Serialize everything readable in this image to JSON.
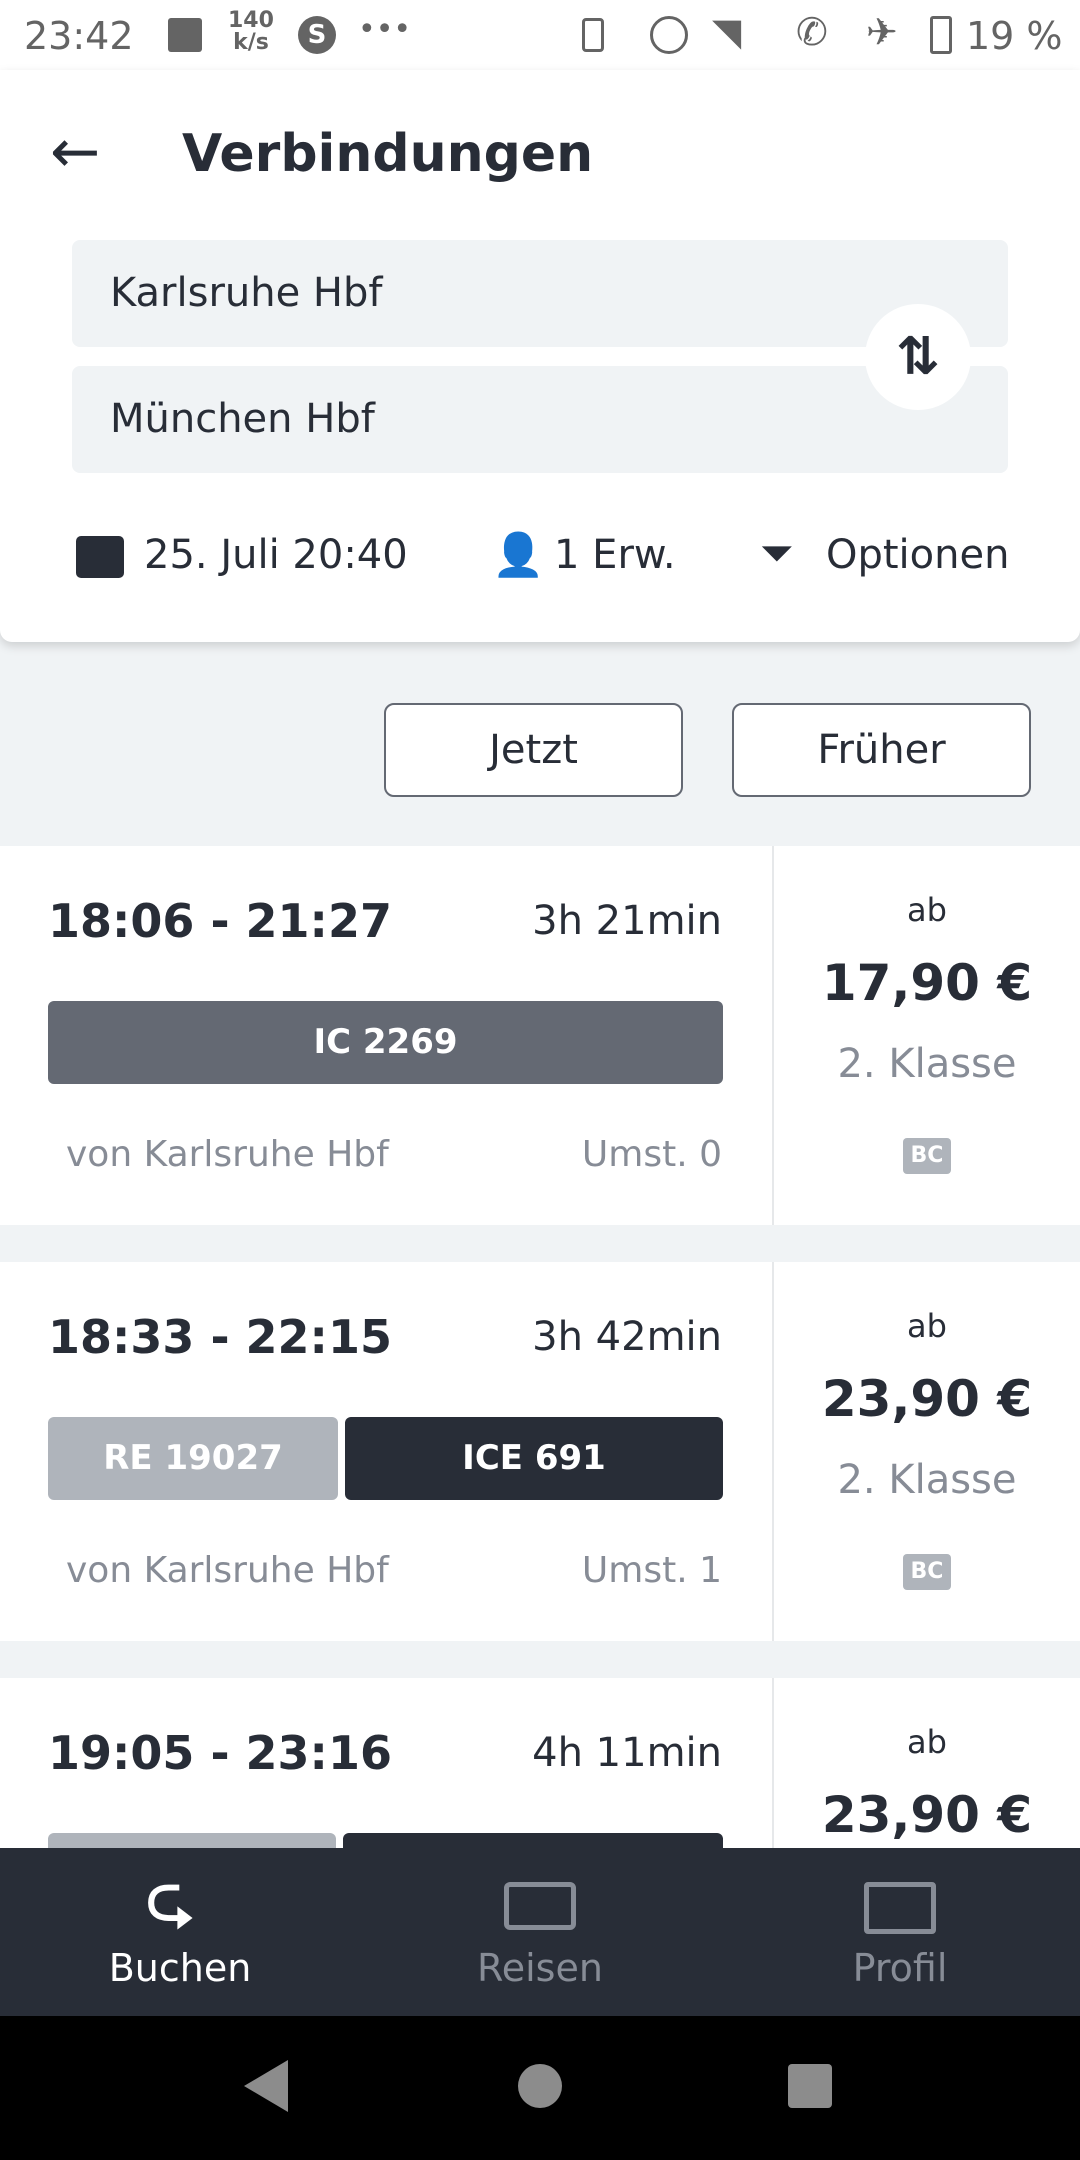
{
  "status": {
    "time": "23:42",
    "speed": "140",
    "speed_unit": "k/s",
    "battery": "19 %"
  },
  "header": {
    "title": "Verbindungen",
    "from": "Karlsruhe Hbf",
    "to": "München Hbf",
    "date": "25. Juli 20:40",
    "passengers": "1 Erw.",
    "options": "Optionen"
  },
  "buttons": {
    "now": "Jetzt",
    "earlier": "Früher"
  },
  "connections": [
    {
      "times": "18:06 - 21:27",
      "duration": "3h 21min",
      "trains": [
        {
          "name": "IC 2269",
          "color": "#646973"
        }
      ],
      "from": "von Karlsruhe Hbf",
      "transfers": "Umst. 0",
      "ab": "ab",
      "price": "17,90 €",
      "class": "2. Klasse",
      "badge": "BC"
    },
    {
      "times": "18:33 - 22:15",
      "duration": "3h 42min",
      "trains": [
        {
          "name": "RE 19027",
          "color": "#afb4bb"
        },
        {
          "name": "ICE 691",
          "color": "#282d37"
        }
      ],
      "from": "von Karlsruhe Hbf",
      "transfers": "Umst. 1",
      "ab": "ab",
      "price": "23,90 €",
      "class": "2. Klasse",
      "badge": "BC"
    },
    {
      "times": "19:05 - 23:16",
      "duration": "4h 11min",
      "ab": "ab",
      "price": "23,90 €"
    }
  ],
  "nav": [
    {
      "label": "Buchen",
      "icon": "route-icon",
      "active": true
    },
    {
      "label": "Reisen",
      "icon": "ticket-icon"
    },
    {
      "label": "Profil",
      "icon": "profile-icon"
    }
  ]
}
